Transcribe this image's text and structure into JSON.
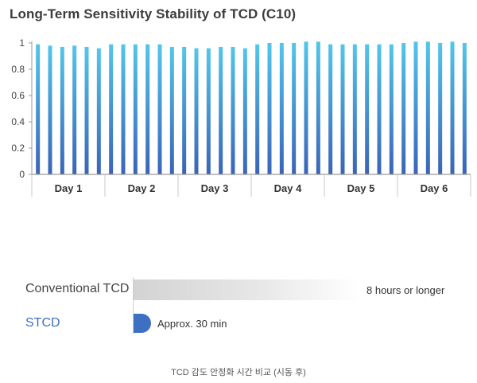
{
  "chart_data": {
    "type": "bar",
    "title": "Long-Term Sensitivity Stability of TCD (C10)",
    "xlabel": "",
    "ylabel": "",
    "ylim": [
      0,
      1
    ],
    "yticks": [
      "0",
      "0.2",
      "0.4",
      "0.6",
      "0.8",
      "1"
    ],
    "categories": [
      "Day 1",
      "Day 2",
      "Day 3",
      "Day 4",
      "Day 5",
      "Day 6"
    ],
    "grid": false,
    "series": [
      {
        "values": [
          [
            0.99,
            0.98,
            0.97,
            0.98,
            0.97,
            0.96
          ],
          [
            0.99,
            0.99,
            0.99,
            0.99,
            0.99,
            0.97
          ],
          [
            0.97,
            0.96,
            0.96,
            0.97,
            0.97,
            0.96
          ],
          [
            0.99,
            1.0,
            1.0,
            1.0,
            1.01,
            1.01
          ],
          [
            0.99,
            0.99,
            0.99,
            0.99,
            0.99,
            0.99
          ],
          [
            1.0,
            1.01,
            1.01,
            1.0,
            1.01,
            1.0
          ]
        ]
      }
    ]
  },
  "comparison": {
    "conventional": {
      "label": "Conventional TCD",
      "value": "8 hours or longer"
    },
    "stcd": {
      "label": "STCD",
      "value": "Approx. 30 min"
    },
    "caption": "TCD 감도 안정화 시간 비교 (시동 후)"
  },
  "colors": {
    "bar_top": "#52c6ea",
    "bar_bottom": "#3a64b8",
    "stcd": "#3d6fc3",
    "axis": "#9a9a9a"
  }
}
